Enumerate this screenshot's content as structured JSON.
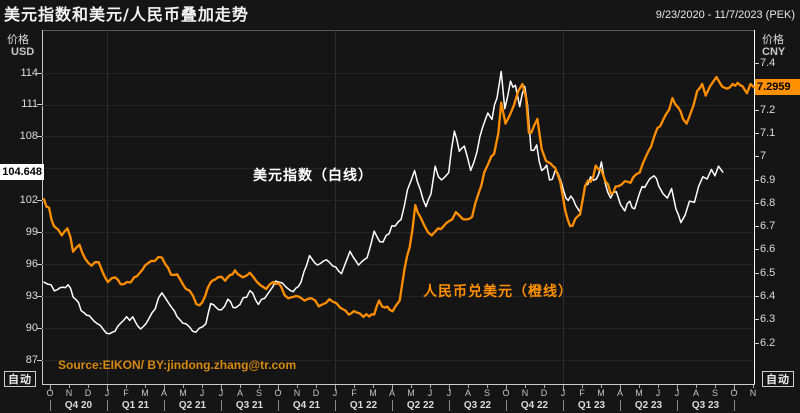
{
  "title": "美元指数和美元/人民币叠加走势",
  "date_range": "9/23/2020 - 11/7/2023 (PEK)",
  "left_axis": {
    "caption_line1": "价格",
    "caption_line2": "USD",
    "ticks": [
      114,
      111,
      108,
      102,
      99,
      96,
      93,
      90,
      87
    ],
    "grid_values": [
      114,
      111,
      108,
      105,
      102,
      99,
      96,
      93,
      90,
      87
    ],
    "last_price_badge": "104.648",
    "last_price_value": 104.648
  },
  "right_axis": {
    "caption_line1": "价格",
    "caption_line2": "CNY",
    "ticks": [
      7.4,
      7.2,
      7.1,
      7,
      6.9,
      6.8,
      6.7,
      6.6,
      6.5,
      6.4,
      6.3,
      6.2
    ],
    "last_price_badge": "7.2959",
    "last_price_value": 7.2959
  },
  "x_axis": {
    "month_letters": [
      "O",
      "N",
      "D",
      "J",
      "F",
      "M",
      "A",
      "M",
      "J",
      "J",
      "A",
      "S",
      "O",
      "N",
      "D",
      "J",
      "F",
      "M",
      "A",
      "M",
      "J",
      "J",
      "A",
      "S",
      "O",
      "N",
      "D",
      "J",
      "F",
      "M",
      "A",
      "M",
      "J",
      "J",
      "A",
      "S",
      "O",
      "N"
    ],
    "quarter_labels": [
      "Q4 20",
      "Q1 21",
      "Q2 21",
      "Q3 21",
      "Q4 21",
      "Q1 22",
      "Q2 22",
      "Q3 22",
      "Q4 22",
      "Q1 23",
      "Q2 23",
      "Q3 23"
    ],
    "year_gridline_month_indices": [
      3,
      15,
      27
    ]
  },
  "auto_button_label": "自动",
  "annotations": {
    "white_line": "美元指数（白线）",
    "orange_line": "人民币兑美元（橙线）"
  },
  "source": "Source:EIKON/ BY:jindong.zhang@tr.com",
  "colors": {
    "background": "#151515",
    "white_line": "#ffffff",
    "orange_line": "#ff8f00",
    "orange_badge": "#ff9100",
    "source_text": "#d88a10"
  },
  "chart_data": {
    "type": "line",
    "title": "美元指数和美元/人民币叠加走势",
    "x_range": [
      "9/23/2020",
      "11/7/2023"
    ],
    "timezone_note": "(PEK)",
    "left_ylim": [
      84.73,
      118.0
    ],
    "right_ylim": [
      6.022,
      7.542
    ],
    "grid": "faint horizontal at left ticks, vertical at year starts",
    "series": [
      {
        "name": "美元指数（白线）",
        "axis": "left",
        "color": "#ffffff",
        "stroke_width": 1.5,
        "jitter": 0.38,
        "last_value": 104.648,
        "points": [
          [
            0,
            94.3
          ],
          [
            0.01,
            94.05
          ],
          [
            0.019,
            93.6
          ],
          [
            0.034,
            94.05
          ],
          [
            0.041,
            92.9
          ],
          [
            0.06,
            91.2
          ],
          [
            0.075,
            90.4
          ],
          [
            0.092,
            89.45
          ],
          [
            0.112,
            90.7
          ],
          [
            0.125,
            91.05
          ],
          [
            0.136,
            89.9
          ],
          [
            0.152,
            91.4
          ],
          [
            0.166,
            93.3
          ],
          [
            0.18,
            91.9
          ],
          [
            0.191,
            90.8
          ],
          [
            0.205,
            90.1
          ],
          [
            0.214,
            89.6
          ],
          [
            0.228,
            90.4
          ],
          [
            0.235,
            92.3
          ],
          [
            0.25,
            91.7
          ],
          [
            0.259,
            92.7
          ],
          [
            0.27,
            91.9
          ],
          [
            0.276,
            92.2
          ],
          [
            0.29,
            93.5
          ],
          [
            0.302,
            92.2
          ],
          [
            0.315,
            93.2
          ],
          [
            0.326,
            94.4
          ],
          [
            0.34,
            93.9
          ],
          [
            0.351,
            93.4
          ],
          [
            0.362,
            94.3
          ],
          [
            0.374,
            96.8
          ],
          [
            0.385,
            95.9
          ],
          [
            0.398,
            96.4
          ],
          [
            0.407,
            95.8
          ],
          [
            0.419,
            95.1
          ],
          [
            0.431,
            97.2
          ],
          [
            0.443,
            95.9
          ],
          [
            0.455,
            96.6
          ],
          [
            0.465,
            99.1
          ],
          [
            0.473,
            98.1
          ],
          [
            0.482,
            98.7
          ],
          [
            0.49,
            99.6
          ],
          [
            0.503,
            100.2
          ],
          [
            0.512,
            103
          ],
          [
            0.522,
            104.8
          ],
          [
            0.53,
            103
          ],
          [
            0.538,
            101.4
          ],
          [
            0.545,
            102.6
          ],
          [
            0.551,
            105.2
          ],
          [
            0.56,
            103.9
          ],
          [
            0.57,
            104.6
          ],
          [
            0.578,
            108.5
          ],
          [
            0.585,
            106.6
          ],
          [
            0.592,
            107.1
          ],
          [
            0.601,
            104.8
          ],
          [
            0.61,
            106.6
          ],
          [
            0.618,
            108.9
          ],
          [
            0.625,
            110.2
          ],
          [
            0.631,
            109.6
          ],
          [
            0.638,
            111.6
          ],
          [
            0.644,
            114.1
          ],
          [
            0.649,
            110.6
          ],
          [
            0.657,
            113.2
          ],
          [
            0.664,
            112.8
          ],
          [
            0.67,
            110.8
          ],
          [
            0.677,
            112.7
          ],
          [
            0.681,
            111
          ],
          [
            0.686,
            106.7
          ],
          [
            0.694,
            107.2
          ],
          [
            0.701,
            104.8
          ],
          [
            0.708,
            105.3
          ],
          [
            0.712,
            103.9
          ],
          [
            0.72,
            104.8
          ],
          [
            0.728,
            103.8
          ],
          [
            0.735,
            102.2
          ],
          [
            0.742,
            102.4
          ],
          [
            0.749,
            101.5
          ],
          [
            0.755,
            100.9
          ],
          [
            0.762,
            103.4
          ],
          [
            0.77,
            104.2
          ],
          [
            0.778,
            104
          ],
          [
            0.785,
            105.6
          ],
          [
            0.79,
            103.7
          ],
          [
            0.798,
            102.2
          ],
          [
            0.806,
            102.8
          ],
          [
            0.812,
            101.6
          ],
          [
            0.818,
            101
          ],
          [
            0.825,
            101.9
          ],
          [
            0.832,
            101.2
          ],
          [
            0.839,
            102.7
          ],
          [
            0.846,
            103.2
          ],
          [
            0.853,
            104
          ],
          [
            0.859,
            104.3
          ],
          [
            0.866,
            103.3
          ],
          [
            0.872,
            102.6
          ],
          [
            0.878,
            102.2
          ],
          [
            0.884,
            103.1
          ],
          [
            0.89,
            101.2
          ],
          [
            0.897,
            99.9
          ],
          [
            0.903,
            100.6
          ],
          [
            0.909,
            101.9
          ],
          [
            0.916,
            101.8
          ],
          [
            0.922,
            103.3
          ],
          [
            0.928,
            104.2
          ],
          [
            0.934,
            104
          ],
          [
            0.94,
            104.9
          ],
          [
            0.945,
            104.3
          ],
          [
            0.95,
            105.2
          ],
          [
            0.956,
            104.648
          ]
        ]
      },
      {
        "name": "人民币兑美元（橙线）",
        "axis": "right",
        "color": "#ff8f00",
        "stroke_width": 2.3,
        "jitter": 0.015,
        "last_value": 7.2959,
        "points": [
          [
            0,
            6.815
          ],
          [
            0.007,
            6.78
          ],
          [
            0.014,
            6.7
          ],
          [
            0.02,
            6.685
          ],
          [
            0.025,
            6.66
          ],
          [
            0.033,
            6.69
          ],
          [
            0.041,
            6.59
          ],
          [
            0.05,
            6.62
          ],
          [
            0.058,
            6.56
          ],
          [
            0.067,
            6.53
          ],
          [
            0.077,
            6.545
          ],
          [
            0.083,
            6.5
          ],
          [
            0.09,
            6.46
          ],
          [
            0.1,
            6.48
          ],
          [
            0.108,
            6.45
          ],
          [
            0.117,
            6.46
          ],
          [
            0.127,
            6.48
          ],
          [
            0.135,
            6.5
          ],
          [
            0.146,
            6.54
          ],
          [
            0.156,
            6.55
          ],
          [
            0.166,
            6.565
          ],
          [
            0.175,
            6.52
          ],
          [
            0.183,
            6.49
          ],
          [
            0.192,
            6.47
          ],
          [
            0.2,
            6.43
          ],
          [
            0.21,
            6.4
          ],
          [
            0.219,
            6.36
          ],
          [
            0.227,
            6.4
          ],
          [
            0.234,
            6.455
          ],
          [
            0.245,
            6.48
          ],
          [
            0.255,
            6.465
          ],
          [
            0.262,
            6.49
          ],
          [
            0.269,
            6.51
          ],
          [
            0.28,
            6.48
          ],
          [
            0.29,
            6.5
          ],
          [
            0.3,
            6.46
          ],
          [
            0.313,
            6.43
          ],
          [
            0.323,
            6.46
          ],
          [
            0.334,
            6.44
          ],
          [
            0.344,
            6.39
          ],
          [
            0.355,
            6.4
          ],
          [
            0.367,
            6.38
          ],
          [
            0.377,
            6.39
          ],
          [
            0.387,
            6.355
          ],
          [
            0.397,
            6.37
          ],
          [
            0.407,
            6.375
          ],
          [
            0.417,
            6.35
          ],
          [
            0.429,
            6.32
          ],
          [
            0.44,
            6.33
          ],
          [
            0.45,
            6.31
          ],
          [
            0.458,
            6.312
          ],
          [
            0.465,
            6.32
          ],
          [
            0.472,
            6.38
          ],
          [
            0.48,
            6.35
          ],
          [
            0.487,
            6.34
          ],
          [
            0.495,
            6.355
          ],
          [
            0.501,
            6.38
          ],
          [
            0.508,
            6.52
          ],
          [
            0.515,
            6.61
          ],
          [
            0.523,
            6.79
          ],
          [
            0.53,
            6.74
          ],
          [
            0.536,
            6.7
          ],
          [
            0.546,
            6.66
          ],
          [
            0.555,
            6.69
          ],
          [
            0.563,
            6.7
          ],
          [
            0.57,
            6.72
          ],
          [
            0.58,
            6.76
          ],
          [
            0.59,
            6.73
          ],
          [
            0.603,
            6.74
          ],
          [
            0.612,
            6.84
          ],
          [
            0.62,
            6.93
          ],
          [
            0.626,
            6.97
          ],
          [
            0.634,
            7.01
          ],
          [
            0.64,
            7.1
          ],
          [
            0.644,
            7.23
          ],
          [
            0.65,
            7.14
          ],
          [
            0.655,
            7.17
          ],
          [
            0.662,
            7.22
          ],
          [
            0.668,
            7.28
          ],
          [
            0.674,
            7.31
          ],
          [
            0.679,
            7.25
          ],
          [
            0.683,
            7.1
          ],
          [
            0.69,
            7.13
          ],
          [
            0.695,
            7.16
          ],
          [
            0.701,
            7.03
          ],
          [
            0.707,
            6.98
          ],
          [
            0.713,
            6.97
          ],
          [
            0.72,
            6.95
          ],
          [
            0.727,
            6.89
          ],
          [
            0.734,
            6.77
          ],
          [
            0.741,
            6.7
          ],
          [
            0.748,
            6.73
          ],
          [
            0.755,
            6.75
          ],
          [
            0.762,
            6.87
          ],
          [
            0.77,
            6.89
          ],
          [
            0.777,
            6.96
          ],
          [
            0.785,
            6.94
          ],
          [
            0.791,
            6.89
          ],
          [
            0.798,
            6.84
          ],
          [
            0.805,
            6.87
          ],
          [
            0.814,
            6.88
          ],
          [
            0.822,
            6.89
          ],
          [
            0.83,
            6.91
          ],
          [
            0.839,
            6.93
          ],
          [
            0.848,
            7
          ],
          [
            0.855,
            7.04
          ],
          [
            0.86,
            7.09
          ],
          [
            0.868,
            7.13
          ],
          [
            0.876,
            7.18
          ],
          [
            0.885,
            7.25
          ],
          [
            0.893,
            7.21
          ],
          [
            0.9,
            7.16
          ],
          [
            0.905,
            7.14
          ],
          [
            0.909,
            7.17
          ],
          [
            0.915,
            7.22
          ],
          [
            0.92,
            7.28
          ],
          [
            0.927,
            7.31
          ],
          [
            0.932,
            7.26
          ],
          [
            0.938,
            7.3
          ],
          [
            0.947,
            7.34
          ],
          [
            0.955,
            7.3
          ],
          [
            0.962,
            7.29
          ],
          [
            0.97,
            7.31
          ],
          [
            0.977,
            7.315
          ],
          [
            0.984,
            7.3
          ],
          [
            0.99,
            7.27
          ],
          [
            0.995,
            7.31
          ],
          [
            1,
            7.2959
          ]
        ]
      }
    ]
  }
}
